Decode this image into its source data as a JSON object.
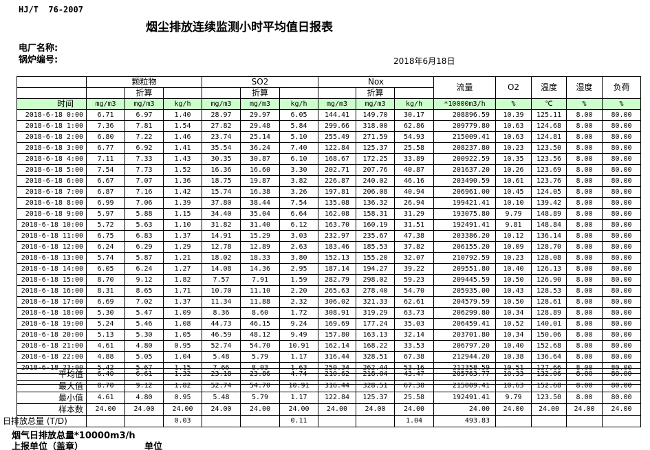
{
  "doc": {
    "standard": "HJ/T  76-2007",
    "title": "烟尘排放连续监测小时平均值日报表",
    "plant_label": "电厂名称:",
    "boiler_label": "锅炉编号:",
    "date": "2018年6月18日",
    "footer_total_note": "烟气日排放总量*10000m3/h",
    "footer_report_unit": "上报单位（盖章）",
    "footer_unit": "单位",
    "header_green": "#ccffcc",
    "border_color": "#000000"
  },
  "table": {
    "time_header": "时间",
    "groups": [
      "颗粒物",
      "SO2",
      "Nox"
    ],
    "converted_label": "折算",
    "flow_header": "流量",
    "o2_header": "O2",
    "temp_header": "温度",
    "humidity_header": "湿度",
    "load_header": "负荷",
    "units": [
      "mg/m3",
      "mg/m3",
      "kg/h",
      "mg/m3",
      "mg/m3",
      "kg/h",
      "mg/m3",
      "mg/m3",
      "kg/h",
      "*10000m3/h",
      "%",
      "℃",
      "%",
      "%"
    ],
    "rows": [
      {
        "time": "2018-6-18 0:00",
        "values": [
          "6.71",
          "6.97",
          "1.40",
          "28.97",
          "29.97",
          "6.05",
          "144.41",
          "149.70",
          "30.17",
          "208896.59",
          "10.39",
          "125.11",
          "8.00",
          "80.00"
        ]
      },
      {
        "time": "2018-6-18 1:00",
        "values": [
          "7.36",
          "7.81",
          "1.54",
          "27.82",
          "29.48",
          "5.84",
          "299.66",
          "318.00",
          "62.86",
          "209779.80",
          "10.63",
          "124.68",
          "8.00",
          "80.00"
        ]
      },
      {
        "time": "2018-6-18 2:00",
        "values": [
          "6.80",
          "7.22",
          "1.46",
          "23.74",
          "25.14",
          "5.10",
          "255.49",
          "271.59",
          "54.93",
          "215009.41",
          "10.63",
          "124.81",
          "8.00",
          "80.00"
        ]
      },
      {
        "time": "2018-6-18 3:00",
        "values": [
          "6.77",
          "6.92",
          "1.41",
          "35.54",
          "36.24",
          "7.40",
          "122.84",
          "125.37",
          "25.58",
          "208237.80",
          "10.23",
          "123.50",
          "8.00",
          "80.00"
        ]
      },
      {
        "time": "2018-6-18 4:00",
        "values": [
          "7.11",
          "7.33",
          "1.43",
          "30.35",
          "30.87",
          "6.10",
          "168.67",
          "172.25",
          "33.89",
          "200922.59",
          "10.35",
          "123.56",
          "8.00",
          "80.00"
        ]
      },
      {
        "time": "2018-6-18 5:00",
        "values": [
          "7.54",
          "7.73",
          "1.52",
          "16.36",
          "16.60",
          "3.30",
          "202.71",
          "207.76",
          "40.87",
          "201637.20",
          "10.26",
          "123.69",
          "8.00",
          "80.00"
        ]
      },
      {
        "time": "2018-6-18 6:00",
        "values": [
          "6.67",
          "7.07",
          "1.36",
          "18.75",
          "19.87",
          "3.82",
          "226.87",
          "240.02",
          "46.16",
          "203490.59",
          "10.61",
          "123.76",
          "8.00",
          "80.00"
        ]
      },
      {
        "time": "2018-6-18 7:00",
        "values": [
          "6.87",
          "7.16",
          "1.42",
          "15.74",
          "16.38",
          "3.26",
          "197.81",
          "206.08",
          "40.94",
          "206961.00",
          "10.45",
          "124.05",
          "8.00",
          "80.00"
        ]
      },
      {
        "time": "2018-6-18 8:00",
        "values": [
          "6.99",
          "7.06",
          "1.39",
          "37.80",
          "38.44",
          "7.54",
          "135.08",
          "136.32",
          "26.94",
          "199421.41",
          "10.10",
          "139.42",
          "8.00",
          "80.00"
        ]
      },
      {
        "time": "2018-6-18 9:00",
        "values": [
          "5.97",
          "5.88",
          "1.15",
          "34.40",
          "35.04",
          "6.64",
          "162.08",
          "158.31",
          "31.29",
          "193075.80",
          "9.79",
          "148.89",
          "8.00",
          "80.00"
        ]
      },
      {
        "time": "2018-6-18 10:00",
        "values": [
          "5.72",
          "5.63",
          "1.10",
          "31.82",
          "31.40",
          "6.12",
          "163.70",
          "160.19",
          "31.51",
          "192491.41",
          "9.81",
          "148.84",
          "8.00",
          "80.00"
        ]
      },
      {
        "time": "2018-6-18 11:00",
        "values": [
          "6.75",
          "6.83",
          "1.37",
          "14.91",
          "15.29",
          "3.03",
          "232.97",
          "235.67",
          "47.38",
          "203386.20",
          "10.12",
          "136.14",
          "8.00",
          "80.00"
        ]
      },
      {
        "time": "2018-6-18 12:00",
        "values": [
          "6.24",
          "6.29",
          "1.29",
          "12.78",
          "12.89",
          "2.63",
          "183.46",
          "185.53",
          "37.82",
          "206155.20",
          "10.09",
          "128.70",
          "8.00",
          "80.00"
        ]
      },
      {
        "time": "2018-6-18 13:00",
        "values": [
          "5.74",
          "5.87",
          "1.21",
          "18.02",
          "18.33",
          "3.80",
          "152.13",
          "155.20",
          "32.07",
          "210792.59",
          "10.23",
          "128.08",
          "8.00",
          "80.00"
        ]
      },
      {
        "time": "2018-6-18 14:00",
        "values": [
          "6.05",
          "6.24",
          "1.27",
          "14.08",
          "14.36",
          "2.95",
          "187.14",
          "194.27",
          "39.22",
          "209551.80",
          "10.40",
          "126.13",
          "8.00",
          "80.00"
        ]
      },
      {
        "time": "2018-6-18 15:00",
        "values": [
          "8.70",
          "9.12",
          "1.82",
          "7.57",
          "7.91",
          "1.59",
          "282.79",
          "298.02",
          "59.23",
          "209445.59",
          "10.50",
          "126.90",
          "8.00",
          "80.00"
        ]
      },
      {
        "time": "2018-6-18 16:00",
        "values": [
          "8.31",
          "8.65",
          "1.71",
          "10.70",
          "11.10",
          "2.20",
          "265.63",
          "278.40",
          "54.70",
          "205935.00",
          "10.43",
          "128.53",
          "8.00",
          "80.00"
        ]
      },
      {
        "time": "2018-6-18 17:00",
        "values": [
          "6.69",
          "7.02",
          "1.37",
          "11.34",
          "11.88",
          "2.32",
          "306.02",
          "321.33",
          "62.61",
          "204579.59",
          "10.50",
          "128.61",
          "8.00",
          "80.00"
        ]
      },
      {
        "time": "2018-6-18 18:00",
        "values": [
          "5.30",
          "5.47",
          "1.09",
          "8.36",
          "8.60",
          "1.72",
          "308.91",
          "319.29",
          "63.73",
          "206299.80",
          "10.34",
          "128.89",
          "8.00",
          "80.00"
        ]
      },
      {
        "time": "2018-6-18 19:00",
        "values": [
          "5.24",
          "5.46",
          "1.08",
          "44.73",
          "46.15",
          "9.24",
          "169.69",
          "177.24",
          "35.03",
          "206459.41",
          "10.52",
          "140.01",
          "8.00",
          "80.00"
        ]
      },
      {
        "time": "2018-6-18 20:00",
        "values": [
          "5.13",
          "5.30",
          "1.05",
          "46.59",
          "48.12",
          "9.49",
          "157.80",
          "163.13",
          "32.14",
          "203701.80",
          "10.34",
          "150.06",
          "8.00",
          "80.00"
        ]
      },
      {
        "time": "2018-6-18 21:00",
        "values": [
          "4.61",
          "4.80",
          "0.95",
          "52.74",
          "54.70",
          "10.91",
          "162.14",
          "168.22",
          "33.53",
          "206797.20",
          "10.40",
          "152.68",
          "8.00",
          "80.00"
        ]
      },
      {
        "time": "2018-6-18 22:00",
        "values": [
          "4.88",
          "5.05",
          "1.04",
          "5.48",
          "5.79",
          "1.17",
          "316.44",
          "328.51",
          "67.38",
          "212944.20",
          "10.38",
          "136.64",
          "8.00",
          "80.00"
        ]
      },
      {
        "time": "2018-6-18 23:00",
        "values": [
          "5.42",
          "5.67",
          "1.15",
          "7.66",
          "8.03",
          "1.63",
          "250.34",
          "262.44",
          "53.16",
          "212358.59",
          "10.51",
          "127.66",
          "8.00",
          "80.00"
        ]
      }
    ],
    "summary": [
      {
        "label": "平均值",
        "values": [
          "6.40",
          "6.61",
          "1.32",
          "23.18",
          "23.86",
          "4.74",
          "210.62",
          "218.04",
          "43.47",
          "205763.77",
          "10.33",
          "132.06",
          "8.00",
          "80.00"
        ]
      },
      {
        "label": "最大值",
        "values": [
          "8.70",
          "9.12",
          "1.82",
          "52.74",
          "54.70",
          "10.91",
          "316.44",
          "328.51",
          "67.38",
          "215009.41",
          "10.63",
          "152.68",
          "8.00",
          "80.00"
        ]
      },
      {
        "label": "最小值",
        "values": [
          "4.61",
          "4.80",
          "0.95",
          "5.48",
          "5.79",
          "1.17",
          "122.84",
          "125.37",
          "25.58",
          "192491.41",
          "9.79",
          "123.50",
          "8.00",
          "80.00"
        ]
      },
      {
        "label": "样本数",
        "values": [
          "24.00",
          "24.00",
          "24.00",
          "24.00",
          "24.00",
          "24.00",
          "24.00",
          "24.00",
          "24.00",
          "24.00",
          "24.00",
          "24.00",
          "24.00",
          "24.00"
        ]
      },
      {
        "label": "日排放总量 (T/D)",
        "values": [
          "",
          "",
          "0.03",
          "",
          "",
          "0.11",
          "",
          "",
          "1.04",
          "493.83",
          "",
          "",
          "",
          ""
        ]
      }
    ]
  }
}
